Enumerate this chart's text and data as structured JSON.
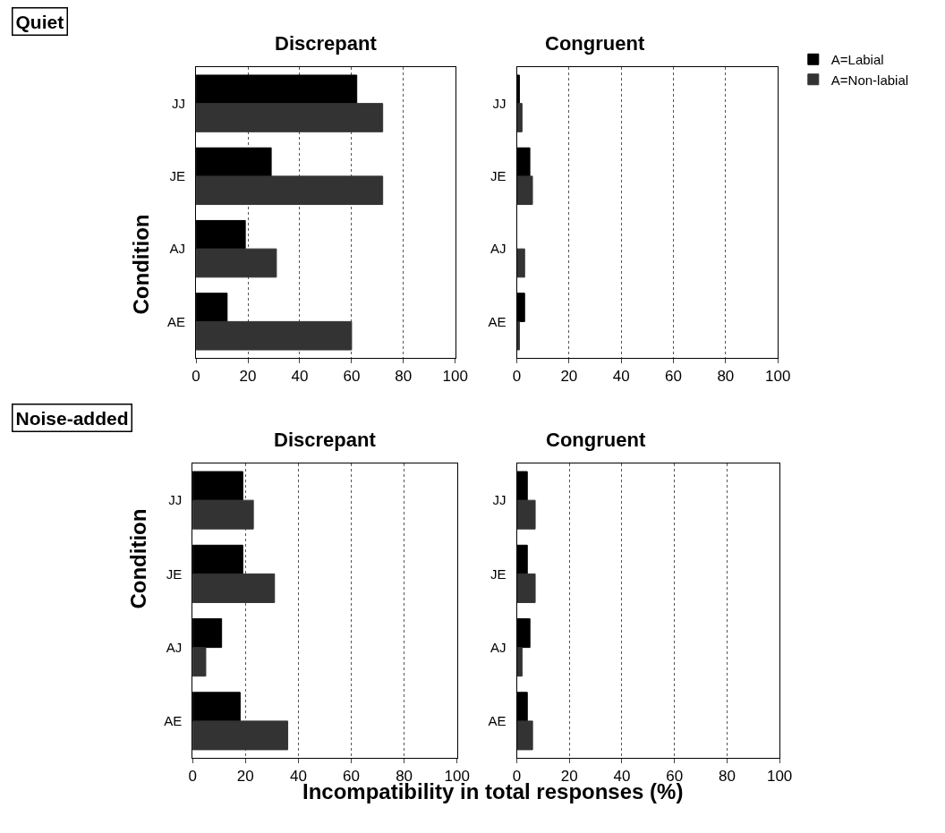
{
  "chart_data": [
    {
      "type": "bar",
      "orientation": "horizontal",
      "title": "Discrepant",
      "ylabel": "Condition",
      "annotations": [
        "Quiet"
      ],
      "categories": [
        "JJ",
        "JE",
        "AJ",
        "AE"
      ],
      "series": [
        {
          "color": "#000000",
          "values": [
            62,
            29,
            19,
            12
          ]
        },
        {
          "color": "#333333",
          "values": [
            72,
            72,
            31,
            60
          ]
        }
      ],
      "xlim": [
        0,
        100
      ],
      "xticks": [
        0,
        20,
        40,
        60,
        80,
        100
      ],
      "grid": "x",
      "legend": false
    },
    {
      "type": "bar",
      "orientation": "horizontal",
      "title": "Congruent",
      "categories": [
        "JJ",
        "JE",
        "AJ",
        "AE"
      ],
      "series": [
        {
          "name": "A=Labial",
          "color": "#000000",
          "values": [
            1,
            5,
            0,
            3
          ]
        },
        {
          "name": "A=Non-labial",
          "color": "#333333",
          "values": [
            2,
            6,
            3,
            1
          ]
        }
      ],
      "xlim": [
        0,
        100
      ],
      "xticks": [
        0,
        20,
        40,
        60,
        80,
        100
      ],
      "grid": "x",
      "legend": "top right"
    },
    {
      "type": "bar",
      "orientation": "horizontal",
      "title": "Discrepant",
      "ylabel": "Condition",
      "xlabel": "Incompatibility in total responses (%)",
      "annotations": [
        "Noise-added"
      ],
      "categories": [
        "JJ",
        "JE",
        "AJ",
        "AE"
      ],
      "series": [
        {
          "color": "#000000",
          "values": [
            19,
            19,
            11,
            18
          ]
        },
        {
          "color": "#333333",
          "values": [
            23,
            31,
            5,
            36
          ]
        }
      ],
      "xlim": [
        0,
        100
      ],
      "xticks": [
        0,
        20,
        40,
        60,
        80,
        100
      ],
      "grid": "x",
      "legend": false
    },
    {
      "type": "bar",
      "orientation": "horizontal",
      "title": "Congruent",
      "categories": [
        "JJ",
        "JE",
        "AJ",
        "AE"
      ],
      "series": [
        {
          "color": "#000000",
          "values": [
            4,
            4,
            5,
            4
          ]
        },
        {
          "color": "#333333",
          "values": [
            7,
            7,
            2,
            6
          ]
        }
      ],
      "xlim": [
        0,
        100
      ],
      "xticks": [
        0,
        20,
        40,
        60,
        80,
        100
      ],
      "grid": "x",
      "legend": false
    }
  ]
}
